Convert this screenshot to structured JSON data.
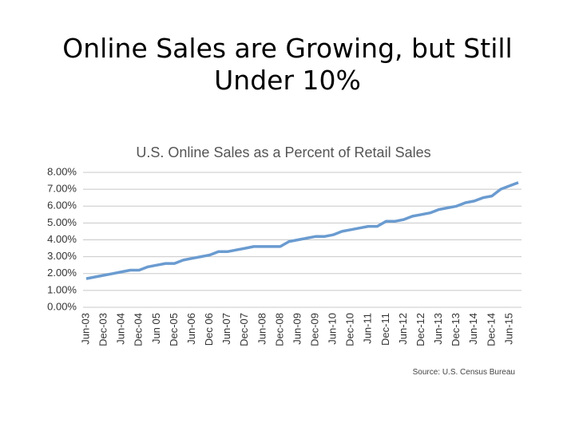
{
  "slide": {
    "title_lines": [
      "Online Sales are Growing, but Still",
      "Under 10%"
    ]
  },
  "chart_data": {
    "type": "line",
    "title": "U.S. Online Sales as a Percent of Retail Sales",
    "source": "Source: U.S. Census Bureau",
    "categories": [
      "Jun-03",
      null,
      "Dec-03",
      null,
      "Jun-04",
      null,
      "Dec-04",
      null,
      "Jun 05",
      null,
      "Dec-05",
      null,
      "Jun-06",
      null,
      "Dec 06",
      null,
      "Jun-07",
      null,
      "Dec-07",
      null,
      "Jun-08",
      null,
      "Dec-08",
      null,
      "Jun-09",
      null,
      "Dec-09",
      null,
      "Jun-10",
      null,
      "Dec-10",
      null,
      "Jun-11",
      null,
      "Dec-11",
      null,
      "Jun-12",
      null,
      "Dec-12",
      null,
      "Jun-13",
      null,
      "Dec-13",
      null,
      "Jun-14",
      null,
      "Dec-14",
      null,
      "Jun-15",
      null
    ],
    "values": [
      1.7,
      1.8,
      1.9,
      2.0,
      2.1,
      2.2,
      2.2,
      2.4,
      2.5,
      2.6,
      2.6,
      2.8,
      2.9,
      3.0,
      3.1,
      3.3,
      3.3,
      3.4,
      3.5,
      3.6,
      3.6,
      3.6,
      3.6,
      3.9,
      4.0,
      4.1,
      4.2,
      4.2,
      4.3,
      4.5,
      4.6,
      4.7,
      4.8,
      4.8,
      5.1,
      5.1,
      5.2,
      5.4,
      5.5,
      5.6,
      5.8,
      5.9,
      6.0,
      6.2,
      6.3,
      6.5,
      6.6,
      7.0,
      7.2,
      7.4
    ],
    "color": "#6a9bd0",
    "ylim": [
      0,
      8
    ],
    "yticks": [
      {
        "value": 0,
        "label": "0.00%"
      },
      {
        "value": 1,
        "label": "1.00%"
      },
      {
        "value": 2,
        "label": "2.00%"
      },
      {
        "value": 3,
        "label": "3.00%"
      },
      {
        "value": 4,
        "label": "4.00%"
      },
      {
        "value": 5,
        "label": "5.00%"
      },
      {
        "value": 6,
        "label": "6.00%"
      },
      {
        "value": 7,
        "label": "7.00%"
      },
      {
        "value": 8,
        "label": "8.00%"
      }
    ],
    "grid": true
  }
}
